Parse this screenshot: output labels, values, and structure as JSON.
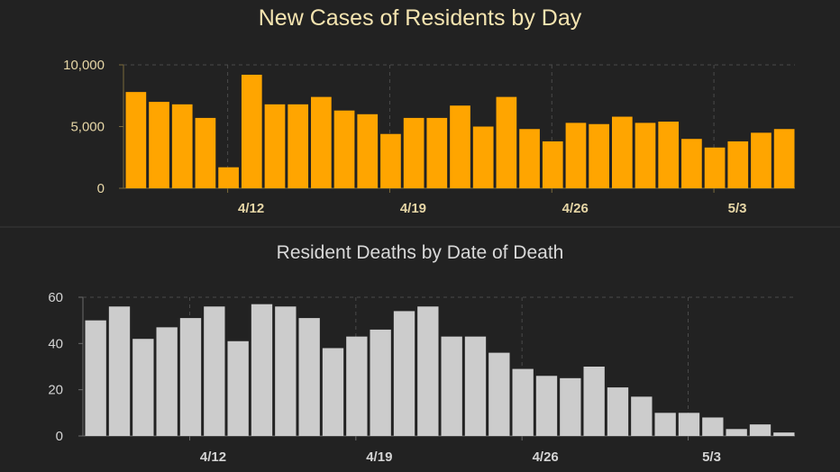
{
  "colors": {
    "background": "#222222",
    "cases_bar": "#FFA500",
    "deaths_bar": "#CCCCCC",
    "separator": "#3a3a3a",
    "cases_axis": "#7a6a3a",
    "deaths_axis": "#6a6a6a"
  },
  "chart_data": [
    {
      "type": "bar",
      "title": "New Cases of Residents by Day",
      "xlabel": "",
      "ylabel": "",
      "ylim": [
        0,
        10000
      ],
      "y_ticks": [
        0,
        5000,
        10000
      ],
      "y_tick_labels": [
        "0",
        "5,000",
        "10,000"
      ],
      "x_tick_labels": [
        "4/12",
        "4/19",
        "4/26",
        "5/3"
      ],
      "x_tick_index": [
        4.5,
        11.5,
        18.5,
        25.5
      ],
      "grid": "dashed vertical at week ticks",
      "values": [
        7800,
        7000,
        6800,
        5700,
        1700,
        9200,
        6800,
        6800,
        7400,
        6300,
        6000,
        4400,
        5700,
        5700,
        6700,
        5000,
        7400,
        4800,
        3800,
        5300,
        5200,
        5800,
        5300,
        5400,
        4000,
        3300,
        3800,
        4500,
        4800
      ]
    },
    {
      "type": "bar",
      "title": "Resident Deaths by Date of Death",
      "xlabel": "",
      "ylabel": "",
      "ylim": [
        0,
        60
      ],
      "y_ticks": [
        0,
        20,
        40,
        60
      ],
      "y_tick_labels": [
        "0",
        "20",
        "40",
        "60"
      ],
      "x_tick_labels": [
        "4/12",
        "4/19",
        "4/26",
        "5/3"
      ],
      "x_tick_index": [
        4.5,
        11.5,
        18.5,
        25.5
      ],
      "grid": "dashed vertical at week ticks",
      "values": [
        50,
        56,
        42,
        47,
        51,
        56,
        41,
        57,
        56,
        51,
        38,
        43,
        46,
        54,
        56,
        43,
        43,
        36,
        29,
        26,
        25,
        30,
        21,
        17,
        10,
        10,
        8,
        3,
        5,
        1.5
      ]
    }
  ]
}
